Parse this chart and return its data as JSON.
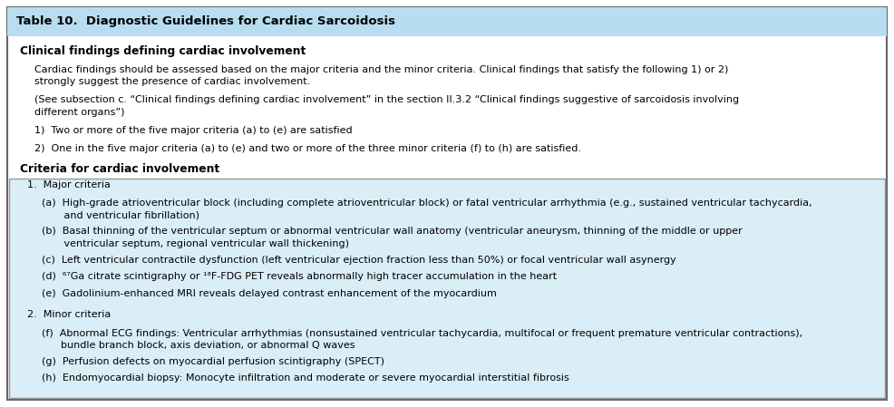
{
  "title": "Table 10.  Diagnostic Guidelines for Cardiac Sarcoidosis",
  "title_bg": "#b8ddf0",
  "title_fontsize": 9.5,
  "section1_header": "Clinical findings defining cardiac involvement",
  "section2_header": "Criteria for cardiac involvement",
  "body_bg": "#ffffff",
  "header_fontsize": 8.8,
  "body_fontsize": 8.0,
  "border_color": "#666666",
  "inner_box_bg": "#daeef7",
  "inner_box_border": "#999999",
  "para1_line1": "Cardiac findings should be assessed based on the major criteria and the minor criteria. Clinical findings that satisfy the following 1) or 2)",
  "para1_line2": "strongly suggest the presence of cardiac involvement.",
  "para2_line1": "(See subsection c. “Clinical findings defining cardiac involvement” in the section II.3.2 “Clinical findings suggestive of sarcoidosis involving",
  "para2_line2": "different organs”)",
  "item1": "1)  Two or more of the five major criteria (a) to (e) are satisfied",
  "item2": "2)  One in the five major criteria (a) to (e) and two or more of the three minor criteria (f) to (h) are satisfied.",
  "major_header": "1.  Major criteria",
  "minor_header": "2.  Minor criteria",
  "major_items": [
    [
      "(a)  High-grade atrioventricular block (including complete atrioventricular block) or fatal ventricular arrhythmia (e.g., sustained ventricular tachycardia,",
      "       and ventricular fibrillation)"
    ],
    [
      "(b)  Basal thinning of the ventricular septum or abnormal ventricular wall anatomy (ventricular aneurysm, thinning of the middle or upper",
      "       ventricular septum, regional ventricular wall thickening)"
    ],
    [
      "(c)  Left ventricular contractile dysfunction (left ventricular ejection fraction less than 50%) or focal ventricular wall asynergy"
    ],
    [
      "(d)  ⁶⁷Ga citrate scintigraphy or ¹⁸F-FDG PET reveals abnormally high tracer accumulation in the heart"
    ],
    [
      "(e)  Gadolinium-enhanced MRI reveals delayed contrast enhancement of the myocardium"
    ]
  ],
  "minor_items": [
    [
      "(f)  Abnormal ECG findings: Ventricular arrhythmias (nonsustained ventricular tachycardia, multifocal or frequent premature ventricular contractions),",
      "      bundle branch block, axis deviation, or abnormal Q waves"
    ],
    [
      "(g)  Perfusion defects on myocardial perfusion scintigraphy (SPECT)"
    ],
    [
      "(h)  Endomyocardial biopsy: Monocyte infiltration and moderate or severe myocardial interstitial fibrosis"
    ]
  ]
}
